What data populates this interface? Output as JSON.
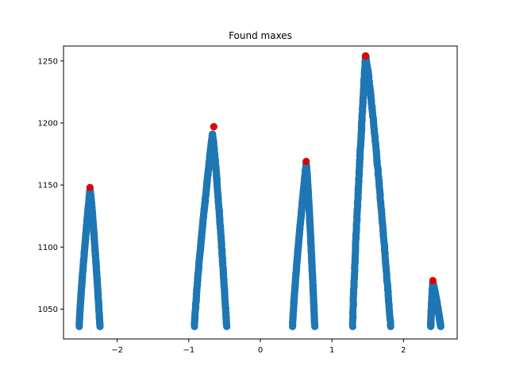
{
  "chart_data": {
    "type": "scatter",
    "title": "Found maxes",
    "xlabel": "",
    "ylabel": "",
    "xlim": [
      -2.75,
      2.75
    ],
    "ylim": [
      1026,
      1262
    ],
    "xticks": [
      -2,
      -1,
      0,
      1,
      2
    ],
    "yticks": [
      1050,
      1100,
      1150,
      1200,
      1250
    ],
    "grid": false,
    "colors": {
      "points": "#1f77b4",
      "maxes": "#e00000"
    },
    "series": [
      {
        "marker": "circle",
        "color": "#1f77b4",
        "peaks": [
          {
            "left_x": -2.53,
            "peak_x": -2.38,
            "right_x": -2.24,
            "base_y": 1036,
            "peak_y": 1146
          },
          {
            "left_x": -0.92,
            "peak_x": -0.67,
            "right_x": -0.47,
            "base_y": 1036,
            "peak_y": 1191
          },
          {
            "left_x": 0.45,
            "peak_x": 0.64,
            "right_x": 0.76,
            "base_y": 1036,
            "peak_y": 1167
          },
          {
            "left_x": 1.29,
            "peak_x": 1.47,
            "right_x": 1.82,
            "base_y": 1036,
            "peak_y": 1254
          },
          {
            "left_x": 2.38,
            "peak_x": 2.41,
            "right_x": 2.52,
            "base_y": 1036,
            "peak_y": 1071
          }
        ]
      },
      {
        "marker": "circle",
        "color": "#e00000",
        "x": [
          -2.38,
          -0.65,
          0.64,
          1.47,
          2.41
        ],
        "y": [
          1148,
          1197,
          1169,
          1254,
          1073
        ]
      }
    ]
  }
}
